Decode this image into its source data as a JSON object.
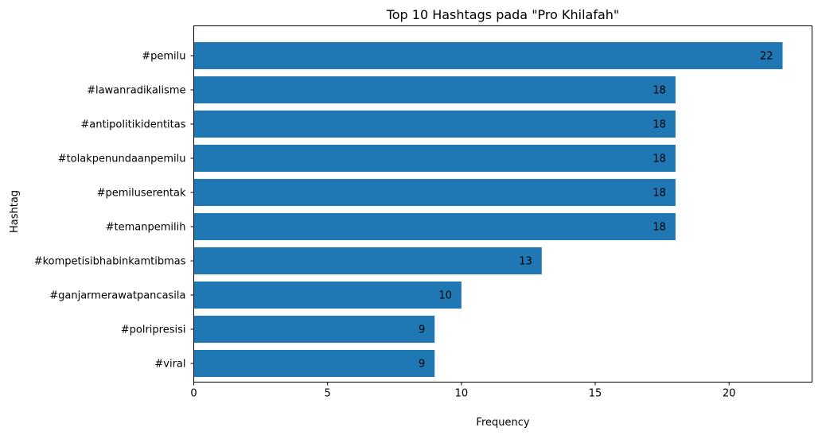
{
  "chart_data": {
    "type": "bar",
    "orientation": "horizontal",
    "title": "Top 10 Hashtags pada \"Pro Khilafah\"",
    "xlabel": "Frequency",
    "ylabel": "Hashtag",
    "categories": [
      "#pemilu",
      "#lawanradikalisme",
      "#antipolitikidentitas",
      "#tolakpenundaanpemilu",
      "#pemiluserentak",
      "#temanpemilih",
      "#kompetisibhabinkamtibmas",
      "#ganjarmerawatpancasila",
      "#polripresisi",
      "#viral"
    ],
    "values": [
      22,
      18,
      18,
      18,
      18,
      18,
      13,
      10,
      9,
      9
    ],
    "data_labels": [
      "22",
      "18",
      "18",
      "18",
      "18",
      "18",
      "13",
      "10",
      "9",
      "9"
    ],
    "xlim": [
      0,
      23.1
    ],
    "xticks": [
      0,
      5,
      10,
      15,
      20
    ],
    "xtick_labels": [
      "0",
      "5",
      "10",
      "15",
      "20"
    ],
    "bar_color": "#1f77b4",
    "grid": false
  }
}
